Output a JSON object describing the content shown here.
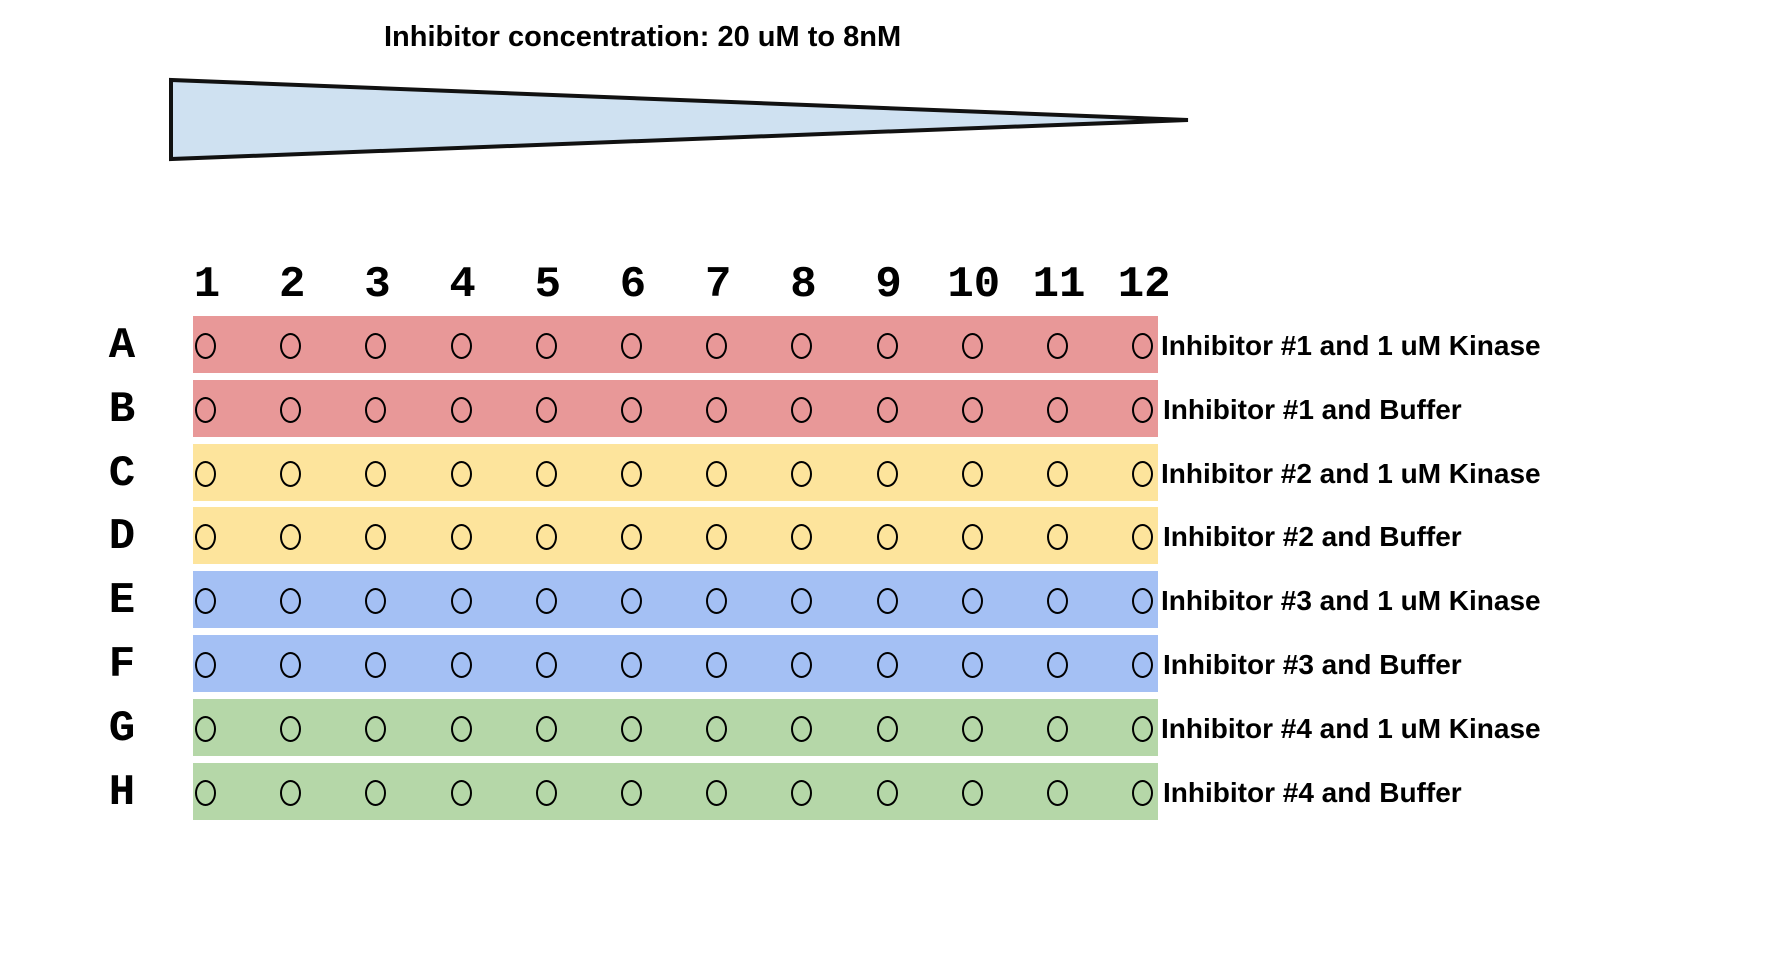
{
  "title": "Inhibitor concentration: 20 uM to 8nM",
  "columns": [
    "1",
    "2",
    "3",
    "4",
    "5",
    "6",
    "7",
    "8",
    "9",
    "10",
    "11",
    "12"
  ],
  "rows": [
    {
      "letter": "A",
      "label": "Inhibitor #1 and 1 uM Kinase",
      "color": "#e89898"
    },
    {
      "letter": "B",
      "label": "Inhibitor #1 and Buffer",
      "color": "#e89898"
    },
    {
      "letter": "C",
      "label": "Inhibitor #2 and 1 uM Kinase",
      "color": "#fde49c"
    },
    {
      "letter": "D",
      "label": "Inhibitor #2 and Buffer",
      "color": "#fde49c"
    },
    {
      "letter": "E",
      "label": "Inhibitor #3 and 1 uM Kinase",
      "color": "#a4c0f4"
    },
    {
      "letter": "F",
      "label": "Inhibitor #3 and Buffer",
      "color": "#a4c0f4"
    },
    {
      "letter": "G",
      "label": "Inhibitor #4 and 1 uM Kinase",
      "color": "#b5d7a8"
    },
    {
      "letter": "H",
      "label": "Inhibitor #4 and Buffer",
      "color": "#b5d7a8"
    }
  ],
  "wedge": {
    "fill": "#cfe1f1",
    "stroke": "#111111"
  }
}
